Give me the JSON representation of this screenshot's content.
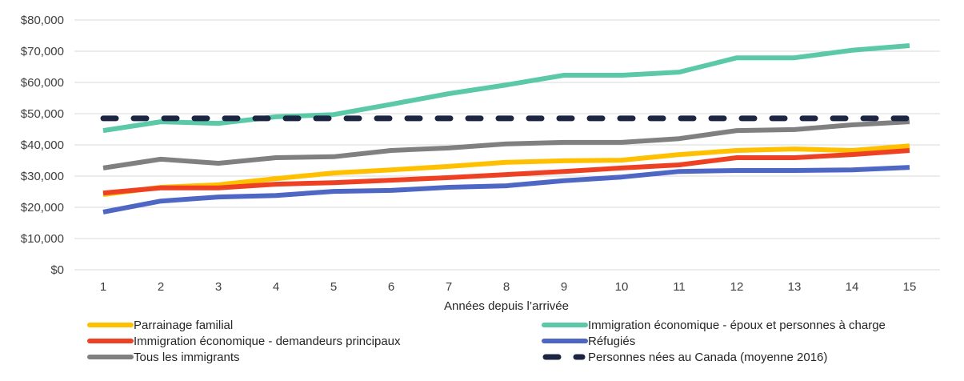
{
  "chart_data": {
    "type": "line",
    "title": "",
    "xlabel": "Années depuis l’arrivée",
    "ylabel": "",
    "x": [
      1,
      2,
      3,
      4,
      5,
      6,
      7,
      8,
      9,
      10,
      11,
      12,
      13,
      14,
      15
    ],
    "x_tick_labels": [
      "1",
      "2",
      "3",
      "4",
      "5",
      "6",
      "7",
      "8",
      "9",
      "10",
      "11",
      "12",
      "13",
      "14",
      "15"
    ],
    "ylim": [
      0,
      80000
    ],
    "y_ticks": [
      0,
      10000,
      20000,
      30000,
      40000,
      50000,
      60000,
      70000,
      80000
    ],
    "y_tick_labels": [
      "$0",
      "$10,000",
      "$20,000",
      "$30,000",
      "$40,000",
      "$50,000",
      "$60,000",
      "$70,000",
      "$80,000"
    ],
    "grid": true,
    "legend_position": "bottom",
    "series": [
      {
        "name": "Parrainage familial",
        "color": "#FFC000",
        "style": "solid",
        "values": [
          24100,
          26400,
          27200,
          29200,
          31000,
          32000,
          33100,
          34400,
          34900,
          35100,
          36900,
          38200,
          38700,
          38200,
          39700
        ]
      },
      {
        "name": "Immigration économique - époux et personnes à charge",
        "color": "#5BC8A8",
        "style": "solid",
        "values": [
          44600,
          47400,
          46900,
          49000,
          49700,
          53000,
          56400,
          59200,
          62300,
          62300,
          63300,
          67900,
          67900,
          70300,
          71800
        ]
      },
      {
        "name": "Immigration économique - demandeurs principaux",
        "color": "#EE4123",
        "style": "solid",
        "values": [
          24600,
          26200,
          26200,
          27400,
          27900,
          28700,
          29500,
          30500,
          31500,
          32600,
          33600,
          35900,
          35900,
          36900,
          38200
        ]
      },
      {
        "name": "Réfugiés",
        "color": "#4E66C4",
        "style": "solid",
        "values": [
          18500,
          22000,
          23300,
          23800,
          25100,
          25400,
          26400,
          26900,
          28500,
          29700,
          31500,
          31800,
          31800,
          32000,
          32800
        ]
      },
      {
        "name": "Tous les immigrants",
        "color": "#808080",
        "style": "solid",
        "values": [
          32600,
          35400,
          34100,
          35900,
          36200,
          38200,
          39000,
          40300,
          40800,
          40800,
          42000,
          44600,
          44900,
          46400,
          47400
        ]
      },
      {
        "name": "Personnes nées au Canada (moyenne 2016)",
        "color": "#1C2541",
        "style": "dashed",
        "values": [
          48500,
          48500,
          48500,
          48500,
          48500,
          48500,
          48500,
          48500,
          48500,
          48500,
          48500,
          48500,
          48500,
          48500,
          48500
        ]
      }
    ],
    "draw_order": [
      4,
      0,
      2,
      3,
      1,
      5
    ],
    "legend_layout": [
      [
        0,
        1
      ],
      [
        2,
        3
      ],
      [
        4,
        5
      ]
    ]
  }
}
